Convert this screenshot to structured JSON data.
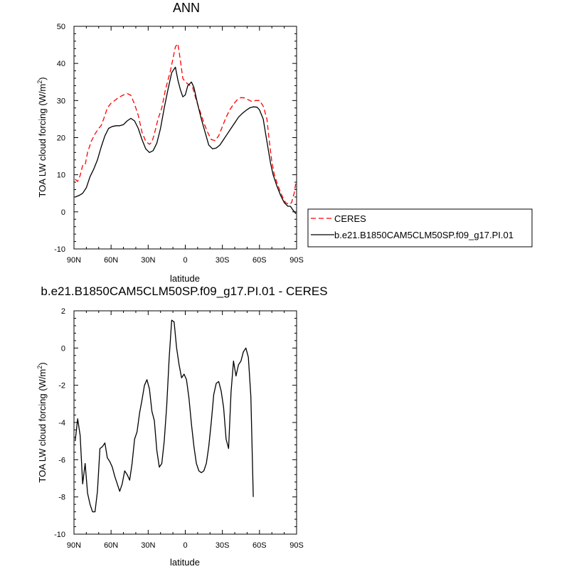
{
  "chart_data": [
    {
      "type": "line",
      "title": "ANN",
      "xlabel": "latitude",
      "ylabel": "TOA LW cloud forcing (W/m²)",
      "xlim": [
        90,
        -90
      ],
      "ylim": [
        -10,
        50
      ],
      "xticks": [
        {
          "value": 90,
          "label": "90N"
        },
        {
          "value": 60,
          "label": "60N"
        },
        {
          "value": 30,
          "label": "30N"
        },
        {
          "value": 0,
          "label": "0"
        },
        {
          "value": -30,
          "label": "30S"
        },
        {
          "value": -60,
          "label": "60S"
        },
        {
          "value": -90,
          "label": "90S"
        }
      ],
      "yticks": [
        -10,
        0,
        10,
        20,
        30,
        40,
        50
      ],
      "legend_position": "right-bottom",
      "series": [
        {
          "name": "CERES",
          "color": "#ff0000",
          "dash": "dashed",
          "points": [
            [
              89,
              8.8
            ],
            [
              87,
              8.2
            ],
            [
              85,
              9.8
            ],
            [
              83,
              12.5
            ],
            [
              81,
              12.6
            ],
            [
              79,
              16
            ],
            [
              76,
              19
            ],
            [
              73,
              21
            ],
            [
              70,
              22.5
            ],
            [
              68,
              23.3
            ],
            [
              66,
              25
            ],
            [
              63,
              28
            ],
            [
              60,
              29.3
            ],
            [
              57,
              30
            ],
            [
              54,
              30.8
            ],
            [
              50,
              31.5
            ],
            [
              47,
              31.9
            ],
            [
              44,
              31.4
            ],
            [
              41,
              29
            ],
            [
              38,
              26
            ],
            [
              35,
              21.5
            ],
            [
              32,
              19
            ],
            [
              29,
              18.2
            ],
            [
              27,
              18.8
            ],
            [
              25,
              21
            ],
            [
              22,
              25
            ],
            [
              19,
              28
            ],
            [
              16,
              33
            ],
            [
              12,
              38
            ],
            [
              8,
              44.5
            ],
            [
              6,
              45.3
            ],
            [
              4,
              41
            ],
            [
              2,
              36
            ],
            [
              0,
              35
            ],
            [
              -2,
              34.5
            ],
            [
              -4,
              34
            ],
            [
              -6,
              33.5
            ],
            [
              -9,
              30
            ],
            [
              -12,
              27
            ],
            [
              -15,
              24
            ],
            [
              -18,
              21.5
            ],
            [
              -21,
              19.5
            ],
            [
              -24,
              19.2
            ],
            [
              -27,
              20.5
            ],
            [
              -30,
              23
            ],
            [
              -33,
              25.5
            ],
            [
              -36,
              27.5
            ],
            [
              -39,
              29
            ],
            [
              -42,
              30.2
            ],
            [
              -45,
              30.8
            ],
            [
              -48,
              30.7
            ],
            [
              -51,
              30.2
            ],
            [
              -54,
              29.7
            ],
            [
              -57,
              30
            ],
            [
              -60,
              30
            ],
            [
              -63,
              28.5
            ],
            [
              -66,
              25
            ],
            [
              -68,
              19
            ],
            [
              -70,
              13.5
            ],
            [
              -72,
              10
            ],
            [
              -75,
              7
            ],
            [
              -78,
              4.5
            ],
            [
              -81,
              2.5
            ],
            [
              -84,
              2
            ],
            [
              -86,
              2.5
            ],
            [
              -88,
              5
            ],
            [
              -89.5,
              8
            ]
          ]
        },
        {
          "name": "b.e21.B1850CAM5CLM50SP.f09_g17.PI.01",
          "color": "#000000",
          "dash": "solid",
          "points": [
            [
              89,
              4
            ],
            [
              86,
              4.4
            ],
            [
              83,
              5
            ],
            [
              80,
              6.5
            ],
            [
              77,
              9.5
            ],
            [
              74,
              11.5
            ],
            [
              71,
              14
            ],
            [
              68,
              17.5
            ],
            [
              65,
              20.5
            ],
            [
              62,
              22.5
            ],
            [
              59,
              23
            ],
            [
              56,
              23.2
            ],
            [
              53,
              23.2
            ],
            [
              50,
              23.5
            ],
            [
              47,
              24.5
            ],
            [
              44,
              25.2
            ],
            [
              41,
              24.5
            ],
            [
              38,
              22.5
            ],
            [
              35,
              19.5
            ],
            [
              32,
              17
            ],
            [
              29,
              16
            ],
            [
              26,
              16.5
            ],
            [
              23,
              18.5
            ],
            [
              20,
              22.5
            ],
            [
              17,
              28
            ],
            [
              14,
              33
            ],
            [
              11,
              37.5
            ],
            [
              8,
              39
            ],
            [
              6,
              35.5
            ],
            [
              4,
              33
            ],
            [
              2,
              31
            ],
            [
              0,
              31.5
            ],
            [
              -2,
              34
            ],
            [
              -5,
              35
            ],
            [
              -7,
              33.5
            ],
            [
              -10,
              29
            ],
            [
              -13,
              25
            ],
            [
              -16,
              21.5
            ],
            [
              -19,
              18
            ],
            [
              -22,
              17
            ],
            [
              -25,
              17.2
            ],
            [
              -28,
              18
            ],
            [
              -31,
              19.5
            ],
            [
              -34,
              21
            ],
            [
              -37,
              22.5
            ],
            [
              -40,
              24
            ],
            [
              -43,
              25.5
            ],
            [
              -46,
              26.5
            ],
            [
              -49,
              27.3
            ],
            [
              -52,
              28
            ],
            [
              -55,
              28.3
            ],
            [
              -58,
              28.2
            ],
            [
              -60,
              27.5
            ],
            [
              -63,
              25
            ],
            [
              -65,
              21
            ],
            [
              -67,
              17
            ],
            [
              -69,
              13
            ],
            [
              -71,
              10
            ],
            [
              -74,
              7
            ],
            [
              -77,
              4.5
            ],
            [
              -80,
              2.5
            ],
            [
              -83,
              1.5
            ],
            [
              -85,
              1.5
            ],
            [
              -87,
              0.5
            ],
            [
              -89.5,
              -0.5
            ]
          ]
        }
      ]
    },
    {
      "type": "line",
      "title": "b.e21.B1850CAM5CLM50SP.f09_g17.PI.01 - CERES",
      "xlabel": "latitude",
      "ylabel": "TOA LW cloud forcing (W/m²)",
      "xlim": [
        90,
        -90
      ],
      "ylim": [
        -10,
        2
      ],
      "xticks": [
        {
          "value": 90,
          "label": "90N"
        },
        {
          "value": 60,
          "label": "60N"
        },
        {
          "value": 30,
          "label": "30N"
        },
        {
          "value": 0,
          "label": "0"
        },
        {
          "value": -30,
          "label": "30S"
        },
        {
          "value": -60,
          "label": "60S"
        },
        {
          "value": -90,
          "label": "90S"
        }
      ],
      "yticks": [
        -10,
        -8,
        -6,
        -4,
        -2,
        0,
        2
      ],
      "series": [
        {
          "color": "#000000",
          "dash": "solid",
          "points": [
            [
              89,
              -5
            ],
            [
              87,
              -3.8
            ],
            [
              85,
              -4.7
            ],
            [
              83,
              -7.3
            ],
            [
              81,
              -6.2
            ],
            [
              79,
              -7.8
            ],
            [
              77,
              -8.4
            ],
            [
              75,
              -8.8
            ],
            [
              73,
              -8.8
            ],
            [
              71,
              -7.7
            ],
            [
              69,
              -5.4
            ],
            [
              67,
              -5.3
            ],
            [
              65,
              -5.1
            ],
            [
              63,
              -5.9
            ],
            [
              61,
              -6.1
            ],
            [
              59,
              -6.4
            ],
            [
              57,
              -6.9
            ],
            [
              55,
              -7.3
            ],
            [
              53,
              -7.7
            ],
            [
              51,
              -7.3
            ],
            [
              49,
              -6.6
            ],
            [
              47,
              -6.8
            ],
            [
              45,
              -7.1
            ],
            [
              43,
              -6.2
            ],
            [
              41,
              -4.9
            ],
            [
              39,
              -4.5
            ],
            [
              37,
              -3.5
            ],
            [
              35,
              -2.8
            ],
            [
              33,
              -2
            ],
            [
              31,
              -1.7
            ],
            [
              29,
              -2.2
            ],
            [
              27,
              -3.4
            ],
            [
              25,
              -3.9
            ],
            [
              23,
              -5.5
            ],
            [
              21,
              -6.4
            ],
            [
              19,
              -6.2
            ],
            [
              17,
              -5
            ],
            [
              15,
              -3.1
            ],
            [
              13,
              -0.5
            ],
            [
              11,
              1.5
            ],
            [
              9,
              1.4
            ],
            [
              7,
              0
            ],
            [
              5,
              -0.9
            ],
            [
              3,
              -1.6
            ],
            [
              1,
              -1.4
            ],
            [
              -1,
              -1.7
            ],
            [
              -3,
              -2.7
            ],
            [
              -5,
              -4.1
            ],
            [
              -7,
              -5.3
            ],
            [
              -9,
              -6.2
            ],
            [
              -11,
              -6.6
            ],
            [
              -13,
              -6.7
            ],
            [
              -15,
              -6.6
            ],
            [
              -17,
              -6.2
            ],
            [
              -19,
              -5.3
            ],
            [
              -21,
              -4
            ],
            [
              -23,
              -2.5
            ],
            [
              -25,
              -1.9
            ],
            [
              -27,
              -1.8
            ],
            [
              -29,
              -2.3
            ],
            [
              -31,
              -3.2
            ],
            [
              -33,
              -4.9
            ],
            [
              -35,
              -5.4
            ],
            [
              -37,
              -2.4
            ],
            [
              -39,
              -0.7
            ],
            [
              -41,
              -1.5
            ],
            [
              -43,
              -0.9
            ],
            [
              -45,
              -0.7
            ],
            [
              -47,
              -0.2
            ],
            [
              -49,
              0
            ],
            [
              -51,
              -0.5
            ],
            [
              -53,
              -2.6
            ],
            [
              -55,
              -8
            ]
          ]
        }
      ]
    }
  ]
}
